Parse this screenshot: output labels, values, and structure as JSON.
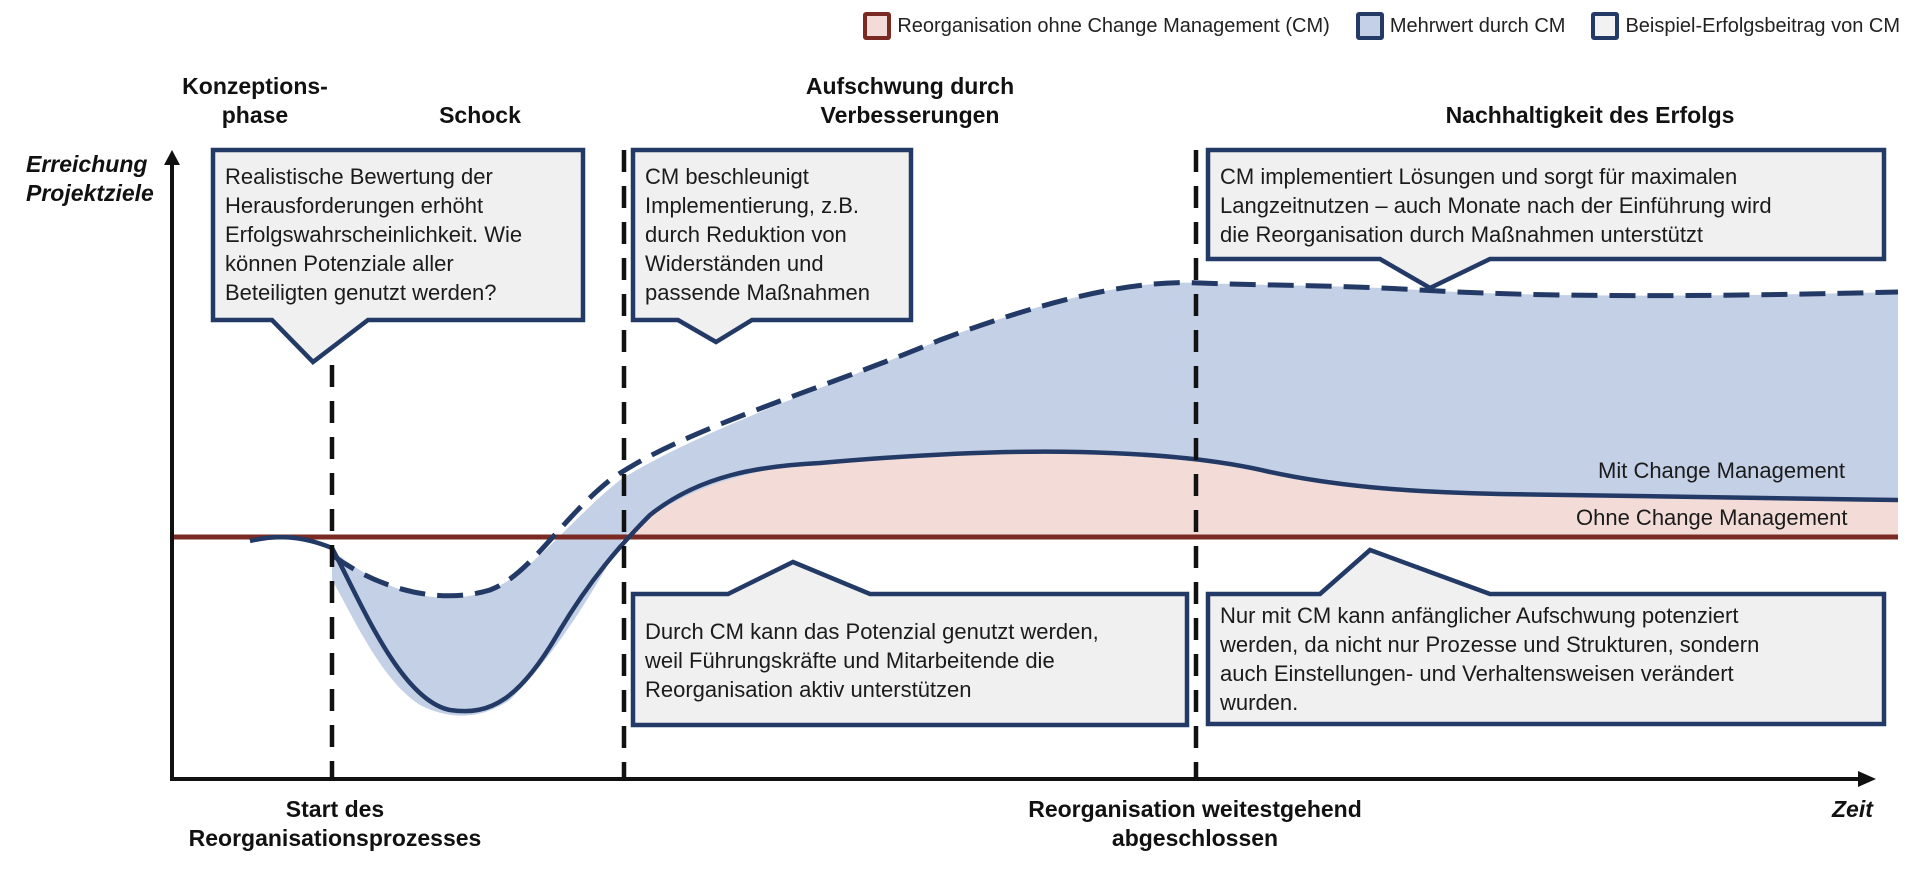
{
  "legend": {
    "items": [
      {
        "label": "Reorganisation ohne Change Management (CM)",
        "color": "#7a2a22"
      },
      {
        "label": "Mehrwert durch CM",
        "color": "#c4d0e6"
      },
      {
        "label": "Beispiel-Erfolgsbeitrag von CM",
        "color": "#233a66"
      }
    ]
  },
  "axes": {
    "y_label": "Erreichung\nProjektziele",
    "x_label": "Zeit"
  },
  "phases": {
    "konzeption": "Konzeptions-\nphase",
    "schock": "Schock",
    "aufschwung": "Aufschwung durch\nVerbesserungen",
    "nachhaltigkeit": "Nachhaltigkeit des Erfolgs"
  },
  "callouts": {
    "bewertung": "Realistische Bewertung der\nHerausforderungen erhöht\nErfolgswahrscheinlichkeit. Wie\nkönnen Potenziale aller\nBeteiligten genutzt werden?",
    "beschleunigt": "CM beschleunigt\nImplementierung, z.B.\ndurch Reduktion von\nWiderständen und\npassende Maßnahmen",
    "langzeit": "CM implementiert Lösungen und sorgt für maximalen\nLangzeitnutzen – auch Monate nach der Einführung wird\ndie Reorganisation durch Maßnahmen unterstützt",
    "potenzial": "Durch CM kann das Potenzial genutzt werden,\nweil Führungskräfte und Mitarbeitende die\nReorganisation aktiv unterstützen",
    "aufschwung": "Nur mit CM kann anfänglicher Aufschwung potenziert\nwerden, da nicht nur Prozesse und Strukturen, sondern\nauch Einstellungen- und Verhaltensweisen verändert\nwurden."
  },
  "curves": {
    "mit_cm": "Mit Change Management",
    "ohne_cm": "Ohne Change Management"
  },
  "milestones": {
    "start": "Start des\nReorganisationsprozesses",
    "abgeschlossen": "Reorganisation weitestgehend\nabgeschlossen"
  },
  "colors": {
    "navy": "#233a66",
    "dark_red": "#7a2a22",
    "blue_fill": "#c4d0e6",
    "pink_fill": "#f3dcd8",
    "callout_bg": "#f0f0f0"
  }
}
